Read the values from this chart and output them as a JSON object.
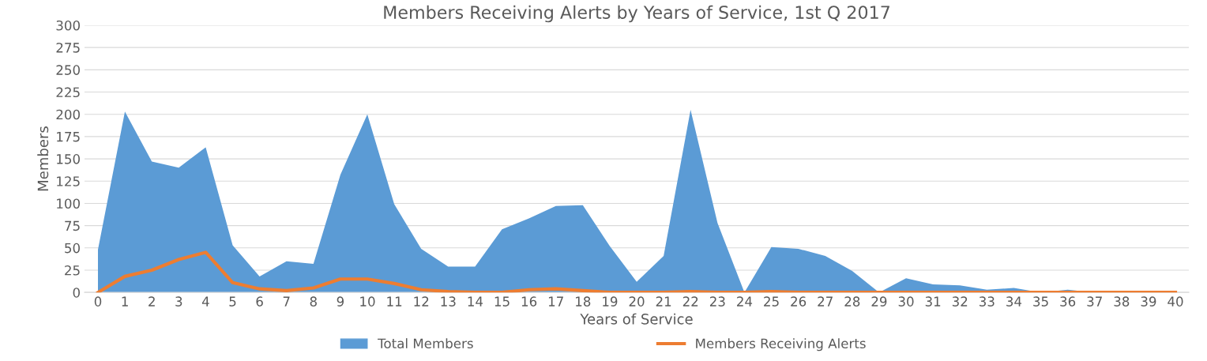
{
  "chart_data": {
    "type": "area",
    "title": "Members Receiving Alerts by Years of Service, 1st Q 2017",
    "xlabel": "Years of Service",
    "ylabel": "Members",
    "categories": [
      "0",
      "1",
      "2",
      "3",
      "4",
      "5",
      "6",
      "7",
      "8",
      "9",
      "10",
      "11",
      "12",
      "13",
      "14",
      "15",
      "16",
      "17",
      "18",
      "19",
      "20",
      "21",
      "22",
      "23",
      "24",
      "25",
      "26",
      "27",
      "28",
      "29",
      "30",
      "31",
      "32",
      "33",
      "34",
      "35",
      "36",
      "37",
      "38",
      "39",
      "40"
    ],
    "series": [
      {
        "name": "Total Members",
        "color": "#5b9bd5",
        "values": [
          48,
          203,
          147,
          140,
          163,
          53,
          18,
          35,
          32,
          132,
          200,
          99,
          49,
          29,
          29,
          71,
          83,
          97,
          98,
          52,
          12,
          41,
          205,
          78,
          0,
          51,
          49,
          41,
          24,
          0,
          16,
          9,
          8,
          3,
          5,
          0,
          3,
          0,
          0,
          0,
          0
        ]
      },
      {
        "name": "Members Receiving Alerts",
        "type": "line",
        "color": "#ed7d31",
        "values": [
          0,
          18,
          25,
          37,
          45,
          11,
          4,
          2,
          5,
          15,
          15,
          10,
          3,
          1,
          0,
          0,
          3,
          4,
          2,
          0,
          0,
          0,
          1,
          0,
          0,
          1,
          0,
          0,
          0,
          0,
          0,
          0,
          0,
          0,
          0,
          0,
          0,
          0,
          0,
          0,
          0
        ]
      }
    ],
    "ylim": [
      0,
      300
    ],
    "yticks": [
      0,
      25,
      50,
      75,
      100,
      125,
      150,
      175,
      200,
      225,
      250,
      275,
      300
    ],
    "grid": "y",
    "legend": "bottom"
  }
}
